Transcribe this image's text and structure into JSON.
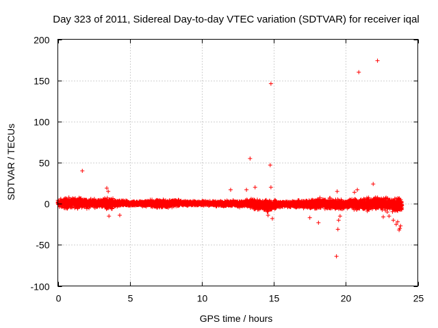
{
  "chart_data": {
    "type": "scatter",
    "title": "Day 323 of 2011, Sidereal Day-to-day VTEC variation (SDTVAR) for receiver iqal",
    "xlabel": "GPS time / hours",
    "ylabel": "SDTVAR / TECUs",
    "xlim": [
      0,
      25
    ],
    "ylim": [
      -100,
      200
    ],
    "xticks": [
      0,
      5,
      10,
      15,
      20,
      25
    ],
    "yticks": [
      -100,
      -50,
      0,
      50,
      100,
      150,
      200
    ],
    "grid": true,
    "marker": "+",
    "color": "#ff0000",
    "series": [
      {
        "name": "SDTVAR",
        "band": [
          [
            0.0,
            -6,
            7
          ],
          [
            0.5,
            -8,
            9
          ],
          [
            1.0,
            -7,
            8
          ],
          [
            1.5,
            -6,
            9
          ],
          [
            2.0,
            -7,
            8
          ],
          [
            2.5,
            -6,
            7
          ],
          [
            3.0,
            -5,
            7
          ],
          [
            3.5,
            -9,
            10
          ],
          [
            4.0,
            -6,
            6
          ],
          [
            4.5,
            -4,
            5
          ],
          [
            5.0,
            -4,
            4
          ],
          [
            5.5,
            -3,
            4
          ],
          [
            6.0,
            -4,
            4
          ],
          [
            6.5,
            -5,
            6
          ],
          [
            7.0,
            -6,
            6
          ],
          [
            7.5,
            -6,
            6
          ],
          [
            8.0,
            -5,
            7
          ],
          [
            8.5,
            -4,
            5
          ],
          [
            9.0,
            -3,
            4
          ],
          [
            9.5,
            -3,
            4
          ],
          [
            10.0,
            -3,
            4
          ],
          [
            10.5,
            -3,
            4
          ],
          [
            11.0,
            -4,
            4
          ],
          [
            11.5,
            -4,
            4
          ],
          [
            12.0,
            -4,
            5
          ],
          [
            12.5,
            -5,
            5
          ],
          [
            13.0,
            -6,
            6
          ],
          [
            13.5,
            -8,
            7
          ],
          [
            14.0,
            -10,
            6
          ],
          [
            14.5,
            -12,
            7
          ],
          [
            15.0,
            -8,
            6
          ],
          [
            15.5,
            -5,
            4
          ],
          [
            16.0,
            -5,
            4
          ],
          [
            16.5,
            -6,
            5
          ],
          [
            17.0,
            -7,
            6
          ],
          [
            17.5,
            -8,
            8
          ],
          [
            18.0,
            -9,
            9
          ],
          [
            18.5,
            -8,
            8
          ],
          [
            19.0,
            -9,
            8
          ],
          [
            19.5,
            -10,
            8
          ],
          [
            20.0,
            -7,
            6
          ],
          [
            20.5,
            -9,
            9
          ],
          [
            21.0,
            -10,
            9
          ],
          [
            21.5,
            -10,
            8
          ],
          [
            22.0,
            -9,
            10
          ],
          [
            22.5,
            -10,
            10
          ],
          [
            23.0,
            -11,
            9
          ],
          [
            23.5,
            -12,
            10
          ],
          [
            23.9,
            -12,
            10
          ]
        ],
        "outliers": [
          [
            1.7,
            40
          ],
          [
            3.4,
            19
          ],
          [
            3.5,
            15
          ],
          [
            3.55,
            -15
          ],
          [
            4.3,
            -14
          ],
          [
            12.0,
            17
          ],
          [
            13.1,
            17
          ],
          [
            13.35,
            55
          ],
          [
            13.7,
            20
          ],
          [
            14.75,
            47
          ],
          [
            14.8,
            146
          ],
          [
            14.8,
            20
          ],
          [
            14.9,
            -18
          ],
          [
            14.6,
            -14
          ],
          [
            18.1,
            -23
          ],
          [
            17.5,
            -17
          ],
          [
            19.35,
            -64
          ],
          [
            19.45,
            -31
          ],
          [
            19.5,
            -20
          ],
          [
            19.6,
            -15
          ],
          [
            19.4,
            15
          ],
          [
            20.6,
            14
          ],
          [
            20.8,
            17
          ],
          [
            20.9,
            160
          ],
          [
            21.9,
            24
          ],
          [
            22.2,
            174
          ],
          [
            22.6,
            -16
          ],
          [
            23.0,
            -15
          ],
          [
            23.3,
            -20
          ],
          [
            23.5,
            -25
          ],
          [
            23.6,
            -22
          ],
          [
            23.7,
            -32
          ],
          [
            23.8,
            -27
          ],
          [
            23.75,
            -30
          ]
        ]
      }
    ]
  }
}
